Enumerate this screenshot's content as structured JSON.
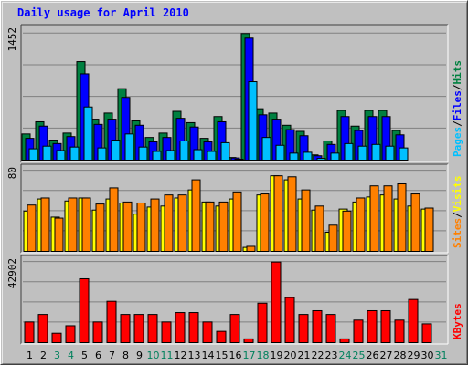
{
  "title": "Daily usage for April 2010",
  "chart_data": [
    {
      "type": "bar",
      "panel": "pages-files-hits",
      "categories": [
        "1",
        "2",
        "3",
        "4",
        "5",
        "6",
        "7",
        "8",
        "9",
        "10",
        "11",
        "12",
        "13",
        "14",
        "15",
        "16",
        "17",
        "18",
        "19",
        "20",
        "21",
        "22",
        "23",
        "24",
        "25",
        "26",
        "27",
        "28",
        "29",
        "30",
        "31"
      ],
      "ymax_label": "1452",
      "ylim": [
        0,
        1452
      ],
      "grid": true,
      "series": [
        {
          "name": "Hits",
          "color": "#008040",
          "values": [
            300,
            440,
            230,
            310,
            1130,
            470,
            540,
            820,
            450,
            260,
            310,
            560,
            430,
            250,
            500,
            30,
            1452,
            590,
            540,
            400,
            330,
            60,
            220,
            570,
            390,
            570,
            570,
            340,
            0,
            0,
            0
          ]
        },
        {
          "name": "Files",
          "color": "#0000ff",
          "values": [
            250,
            390,
            190,
            270,
            990,
            410,
            470,
            720,
            400,
            210,
            260,
            480,
            380,
            210,
            440,
            25,
            1400,
            520,
            470,
            350,
            280,
            50,
            180,
            500,
            340,
            500,
            500,
            290,
            0,
            0,
            0
          ]
        },
        {
          "name": "Pages",
          "color": "#00c0ff",
          "values": [
            130,
            160,
            110,
            150,
            610,
            140,
            230,
            300,
            150,
            100,
            110,
            220,
            120,
            100,
            200,
            10,
            900,
            260,
            170,
            80,
            90,
            20,
            80,
            190,
            160,
            180,
            160,
            140,
            0,
            0,
            0
          ]
        }
      ]
    },
    {
      "type": "bar",
      "panel": "visits-sites",
      "ymax_label": "80",
      "ylim": [
        0,
        80
      ],
      "grid": true,
      "series": [
        {
          "name": "Visits",
          "color": "#ffff00",
          "values": [
            40,
            52,
            34,
            50,
            53,
            41,
            52,
            48,
            37,
            44,
            45,
            53,
            61,
            49,
            45,
            52,
            4,
            56,
            75,
            71,
            52,
            41,
            19,
            42,
            49,
            54,
            56,
            52,
            45,
            42,
            0
          ]
        },
        {
          "name": "Sites",
          "color": "#ff8000",
          "values": [
            46,
            53,
            33,
            53,
            53,
            47,
            63,
            49,
            48,
            52,
            56,
            56,
            71,
            49,
            49,
            59,
            5,
            57,
            75,
            74,
            61,
            45,
            26,
            40,
            53,
            65,
            65,
            67,
            57,
            43,
            0
          ]
        }
      ]
    },
    {
      "type": "bar",
      "panel": "kbytes",
      "ymax_label": "42902",
      "ylim": [
        0,
        42902
      ],
      "grid": true,
      "series": [
        {
          "name": "KBytes",
          "color": "#ff0000",
          "values": [
            11000,
            15000,
            5000,
            9000,
            34000,
            11000,
            22000,
            15000,
            15000,
            15000,
            11000,
            16000,
            16000,
            11000,
            6000,
            15000,
            2000,
            21000,
            42902,
            24000,
            15000,
            17000,
            15000,
            2000,
            12000,
            17000,
            17000,
            12000,
            23000,
            10000,
            0
          ]
        }
      ]
    }
  ],
  "x_labels": [
    {
      "text": "1",
      "weekend": false
    },
    {
      "text": "2",
      "weekend": false
    },
    {
      "text": "3",
      "weekend": true
    },
    {
      "text": "4",
      "weekend": true
    },
    {
      "text": "5",
      "weekend": false
    },
    {
      "text": "6",
      "weekend": false
    },
    {
      "text": "7",
      "weekend": false
    },
    {
      "text": "8",
      "weekend": false
    },
    {
      "text": "9",
      "weekend": false
    },
    {
      "text": "10",
      "weekend": true
    },
    {
      "text": "11",
      "weekend": true
    },
    {
      "text": "12",
      "weekend": false
    },
    {
      "text": "13",
      "weekend": false
    },
    {
      "text": "14",
      "weekend": false
    },
    {
      "text": "15",
      "weekend": false
    },
    {
      "text": "16",
      "weekend": false
    },
    {
      "text": "17",
      "weekend": true
    },
    {
      "text": "18",
      "weekend": true
    },
    {
      "text": "19",
      "weekend": false
    },
    {
      "text": "20",
      "weekend": false
    },
    {
      "text": "21",
      "weekend": false
    },
    {
      "text": "22",
      "weekend": false
    },
    {
      "text": "23",
      "weekend": false
    },
    {
      "text": "24",
      "weekend": true
    },
    {
      "text": "25",
      "weekend": true
    },
    {
      "text": "26",
      "weekend": false
    },
    {
      "text": "27",
      "weekend": false
    },
    {
      "text": "28",
      "weekend": false
    },
    {
      "text": "29",
      "weekend": false
    },
    {
      "text": "30",
      "weekend": false
    },
    {
      "text": "31",
      "weekend": true
    }
  ],
  "colors": {
    "weekday": "#000000",
    "weekend": "#00805c",
    "background": "#c0c0c0",
    "grid": "#808080"
  },
  "right_labels": {
    "panel1": [
      {
        "text": "Pages",
        "color": "#00c0ff"
      },
      {
        "text": "/",
        "color": "#000000"
      },
      {
        "text": "Files",
        "color": "#0000ff"
      },
      {
        "text": "/",
        "color": "#000000"
      },
      {
        "text": "Hits",
        "color": "#008040"
      }
    ],
    "panel2": [
      {
        "text": "Sites",
        "color": "#ff8000"
      },
      {
        "text": "/",
        "color": "#000000"
      },
      {
        "text": "Visits",
        "color": "#ffff00"
      }
    ],
    "panel3": [
      {
        "text": "KBytes",
        "color": "#ff0000"
      }
    ]
  }
}
